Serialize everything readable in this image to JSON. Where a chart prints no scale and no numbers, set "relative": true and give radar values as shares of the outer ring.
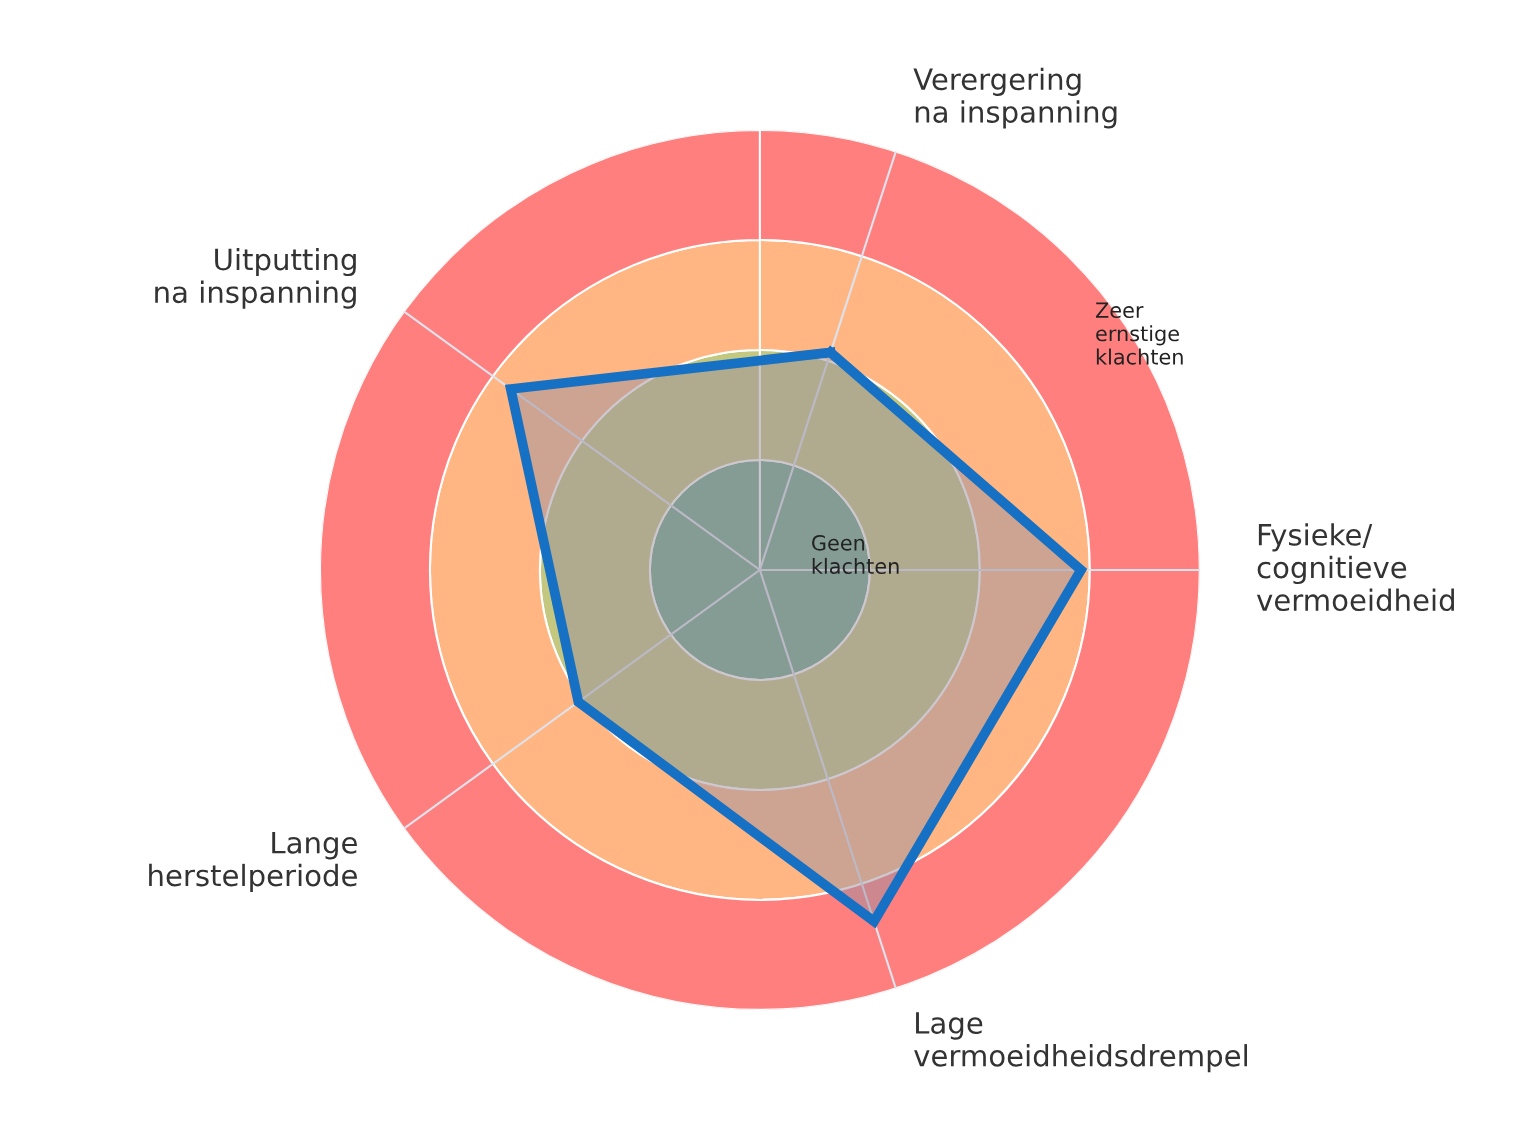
{
  "chart_data": {
    "type": "radar",
    "relative": true,
    "categories": [
      "Verergering\nna inspanning",
      "Fysieke/\ncognitieve\nvermoeidheid",
      "Lage\nvermoeidheidsdrempel",
      "Lange\nherstelperiode",
      "Uitputting\nna inspanning"
    ],
    "series": [
      {
        "color": "#1670c4",
        "values": [
          0.52,
          0.73,
          0.84,
          0.51,
          0.7
        ]
      }
    ],
    "annotations": [
      "Geen\nklachten",
      "Zeer\nernstige\nklachten"
    ],
    "grid": "x"
  }
}
